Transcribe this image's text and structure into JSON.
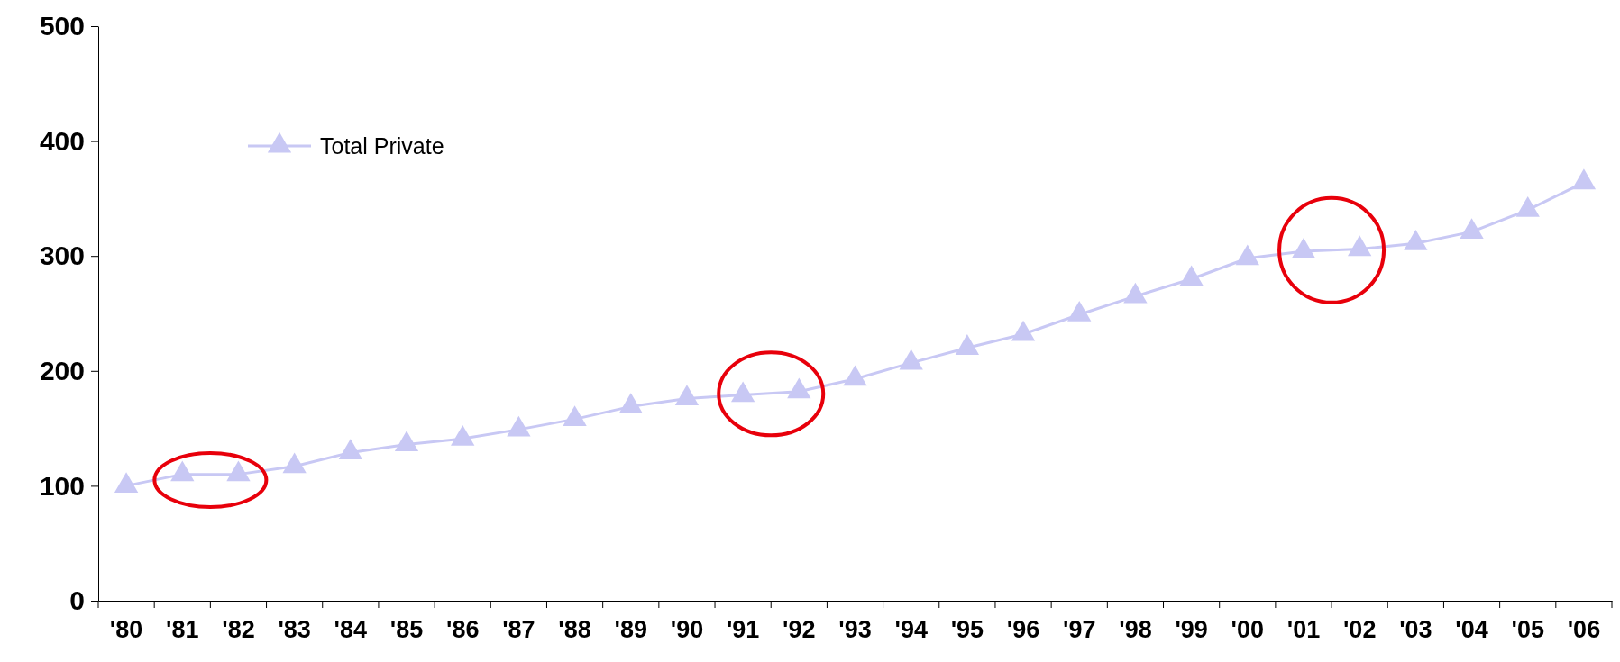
{
  "chart_data": {
    "type": "line",
    "categories": [
      "'80",
      "'81",
      "'82",
      "'83",
      "'84",
      "'85",
      "'86",
      "'87",
      "'88",
      "'89",
      "'90",
      "'91",
      "'92",
      "'93",
      "'94",
      "'95",
      "'96",
      "'97",
      "'98",
      "'99",
      "'00",
      "'01",
      "'02",
      "'03",
      "'04",
      "'05",
      "'06"
    ],
    "series": [
      {
        "name": "Total Private",
        "color": "#c8c8f4",
        "values": [
          100,
          110,
          110,
          117,
          129,
          136,
          141,
          149,
          158,
          169,
          176,
          179,
          182,
          193,
          207,
          220,
          232,
          249,
          265,
          280,
          298,
          304,
          306,
          311,
          321,
          340,
          364
        ]
      }
    ],
    "ylim": [
      0,
      500
    ],
    "yticks": [
      0,
      100,
      200,
      300,
      400,
      500
    ],
    "marker": "triangle",
    "legend": "top left",
    "grid": false
  }
}
